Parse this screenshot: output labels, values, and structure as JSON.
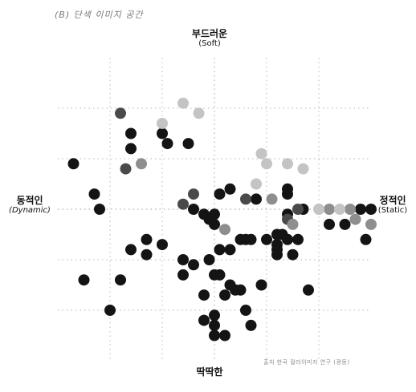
{
  "caption": "(B) 단색 이미지 공간",
  "source_note": "출처 한국 컬러이미지 연구 (광동)",
  "chart_data": {
    "type": "scatter",
    "title": "",
    "axes": {
      "top": {
        "kr": "부드러운",
        "en": "(Soft)"
      },
      "bottom": {
        "kr": "딱딱한",
        "en": ""
      },
      "left": {
        "kr": "동적인",
        "en": "(Dynamic)"
      },
      "right": {
        "kr": "정적인",
        "en": "(Static)"
      }
    },
    "xlim": [
      -3,
      3
    ],
    "ylim": [
      -3,
      3
    ],
    "grid": true,
    "grid_values": [
      -2,
      -1,
      0,
      1,
      2
    ],
    "colors": {
      "dark": "#141414",
      "mid": "#4a4a4a",
      "gray": "#8e8e8e",
      "light": "#c4c4c4",
      "grid": "#9a9a9a"
    },
    "series": [
      {
        "tone": "dark",
        "points": [
          [
            -2.7,
            0.9
          ],
          [
            -1.6,
            1.5
          ],
          [
            -1.6,
            1.2
          ],
          [
            -1.0,
            1.5
          ],
          [
            -0.9,
            1.3
          ],
          [
            -0.5,
            1.3
          ],
          [
            -2.3,
            0.3
          ],
          [
            -2.2,
            0.0
          ],
          [
            -0.4,
            0.0
          ],
          [
            -0.2,
            -0.1
          ],
          [
            0.0,
            -0.1
          ],
          [
            -0.1,
            -0.2
          ],
          [
            0.0,
            -0.3
          ],
          [
            0.3,
            0.4
          ],
          [
            0.1,
            0.3
          ],
          [
            0.8,
            0.2
          ],
          [
            1.4,
            0.3
          ],
          [
            1.4,
            0.4
          ],
          [
            1.4,
            -0.1
          ],
          [
            1.7,
            0.0
          ],
          [
            2.2,
            -0.3
          ],
          [
            2.5,
            -0.3
          ],
          [
            2.8,
            0.0
          ],
          [
            3.0,
            0.0
          ],
          [
            -1.3,
            -0.6
          ],
          [
            -1.6,
            -0.8
          ],
          [
            -1.0,
            -0.7
          ],
          [
            -1.3,
            -0.9
          ],
          [
            0.1,
            -0.8
          ],
          [
            0.3,
            -0.8
          ],
          [
            0.5,
            -0.6
          ],
          [
            0.6,
            -0.6
          ],
          [
            0.7,
            -0.6
          ],
          [
            1.0,
            -0.6
          ],
          [
            1.2,
            -0.5
          ],
          [
            1.3,
            -0.5
          ],
          [
            1.4,
            -0.6
          ],
          [
            1.6,
            -0.6
          ],
          [
            1.2,
            -0.7
          ],
          [
            1.2,
            -0.9
          ],
          [
            1.5,
            -0.9
          ],
          [
            1.2,
            -0.8
          ],
          [
            2.9,
            -0.6
          ],
          [
            -0.6,
            -1.0
          ],
          [
            -0.1,
            -1.0
          ],
          [
            -0.4,
            -1.1
          ],
          [
            0.0,
            -1.3
          ],
          [
            0.1,
            -1.3
          ],
          [
            0.3,
            -1.5
          ],
          [
            0.5,
            -1.6
          ],
          [
            0.4,
            -1.6
          ],
          [
            -2.5,
            -1.4
          ],
          [
            -1.8,
            -1.4
          ],
          [
            -0.6,
            -1.3
          ],
          [
            -0.2,
            -1.7
          ],
          [
            0.2,
            -1.7
          ],
          [
            0.9,
            -1.5
          ],
          [
            1.8,
            -1.6
          ],
          [
            -2.0,
            -2.0
          ],
          [
            0.0,
            -2.1
          ],
          [
            0.0,
            -2.3
          ],
          [
            0.6,
            -2.0
          ],
          [
            0.7,
            -2.3
          ],
          [
            0.0,
            -2.5
          ],
          [
            0.2,
            -2.5
          ],
          [
            -0.2,
            -2.2
          ]
        ]
      },
      {
        "tone": "mid",
        "points": [
          [
            -1.8,
            1.9
          ],
          [
            -1.7,
            0.8
          ],
          [
            -0.4,
            0.3
          ],
          [
            0.6,
            0.2
          ],
          [
            1.4,
            -0.2
          ],
          [
            1.6,
            0.0
          ],
          [
            -0.6,
            0.1
          ]
        ]
      },
      {
        "tone": "gray",
        "points": [
          [
            -1.4,
            0.9
          ],
          [
            0.2,
            -0.4
          ],
          [
            1.5,
            -0.3
          ],
          [
            3.0,
            -0.3
          ],
          [
            2.7,
            -0.2
          ],
          [
            1.1,
            0.2
          ],
          [
            2.6,
            0.0
          ],
          [
            2.2,
            0.0
          ]
        ]
      },
      {
        "tone": "light",
        "points": [
          [
            -1.0,
            1.7
          ],
          [
            -0.3,
            1.9
          ],
          [
            -0.6,
            2.1
          ],
          [
            0.9,
            1.1
          ],
          [
            1.0,
            0.9
          ],
          [
            1.4,
            0.9
          ],
          [
            1.7,
            0.8
          ],
          [
            0.8,
            0.5
          ],
          [
            2.0,
            0.0
          ],
          [
            2.4,
            0.0
          ]
        ]
      }
    ]
  }
}
